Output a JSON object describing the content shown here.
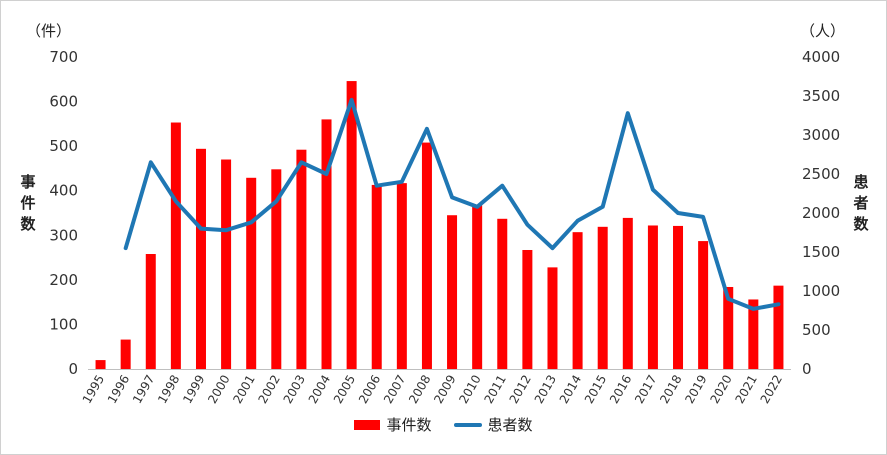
{
  "chart_data": {
    "type": "bar+line",
    "categories": [
      "1995",
      "1996",
      "1997",
      "1998",
      "1999",
      "2000",
      "2001",
      "2002",
      "2003",
      "2004",
      "2005",
      "2006",
      "2007",
      "2008",
      "2009",
      "2010",
      "2011",
      "2012",
      "2013",
      "2014",
      "2015",
      "2016",
      "2017",
      "2018",
      "2019",
      "2020",
      "2021",
      "2022"
    ],
    "series": [
      {
        "name": "事件数",
        "type": "bar",
        "axis": "left",
        "color": "#ff0000",
        "values": [
          20,
          66,
          258,
          553,
          494,
          470,
          429,
          448,
          492,
          560,
          646,
          413,
          417,
          508,
          345,
          367,
          337,
          267,
          228,
          307,
          319,
          339,
          322,
          321,
          287,
          184,
          156,
          187
        ]
      },
      {
        "name": "患者数",
        "type": "line",
        "axis": "right",
        "color": "#1f77b4",
        "values": [
          null,
          1550,
          2650,
          2150,
          1800,
          1780,
          1880,
          2150,
          2650,
          2500,
          3450,
          2350,
          2400,
          3080,
          2200,
          2080,
          2350,
          1850,
          1550,
          1900,
          2080,
          3280,
          2300,
          2000,
          1950,
          900,
          770,
          830
        ]
      }
    ],
    "y_left": {
      "unit": "（件）",
      "label": "事件数",
      "ticks": [
        0,
        100,
        200,
        300,
        400,
        500,
        600,
        700
      ],
      "range": [
        0,
        700
      ]
    },
    "y_right": {
      "unit": "（人）",
      "label": "患者数",
      "ticks": [
        0,
        500,
        1000,
        1500,
        2000,
        2500,
        3000,
        3500,
        4000
      ],
      "range": [
        0,
        4000
      ]
    },
    "grid": false,
    "legend": "bottom-center"
  }
}
